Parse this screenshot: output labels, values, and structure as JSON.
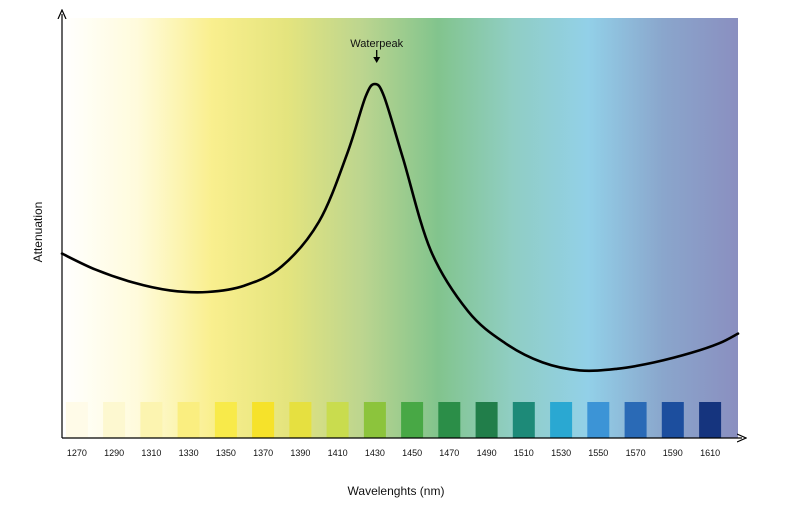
{
  "chart_data": {
    "type": "line",
    "title": "",
    "xlabel": "Wavelenghts (nm)",
    "ylabel": "Attenuation",
    "x_ticks": [
      "1270",
      "1290",
      "1310",
      "1330",
      "1350",
      "1370",
      "1390",
      "1410",
      "1430",
      "1450",
      "1470",
      "1490",
      "1510",
      "1530",
      "1550",
      "1570",
      "1590",
      "1610"
    ],
    "xlim": [
      1262,
      1625
    ],
    "ylim": [
      0,
      1
    ],
    "grid": false,
    "legend": "none",
    "annotation": {
      "text": "Waterpeak",
      "x": 1431
    },
    "series": [
      {
        "name": "",
        "color": "#000000",
        "x": [
          1262,
          1280,
          1300,
          1320,
          1340,
          1360,
          1380,
          1400,
          1415,
          1425,
          1430,
          1435,
          1445,
          1460,
          1480,
          1500,
          1520,
          1540,
          1560,
          1580,
          1600,
          1615,
          1625
        ],
        "y": [
          0.42,
          0.37,
          0.33,
          0.305,
          0.3,
          0.32,
          0.38,
          0.52,
          0.73,
          0.91,
          0.95,
          0.91,
          0.72,
          0.43,
          0.24,
          0.14,
          0.08,
          0.055,
          0.06,
          0.08,
          0.11,
          0.14,
          0.17
        ]
      }
    ],
    "swatch_colors": [
      "#fffbe8",
      "#fdf8d0",
      "#fcf4b0",
      "#faee80",
      "#f8ea4a",
      "#f6e22a",
      "#e6e040",
      "#c9dc4e",
      "#8cc43c",
      "#48a845",
      "#2b8e48",
      "#217e4a",
      "#1d8a78",
      "#2aa8d2",
      "#3c94d6",
      "#2a6ab6",
      "#1c4e9e",
      "#15347e"
    ],
    "background_gradient": [
      "#ffffff",
      "#fffbdc",
      "#f9ef8e",
      "#e4e47e",
      "#bcd58f",
      "#82c48d",
      "#90cec4",
      "#92d0e8",
      "#8aa6cc",
      "#8a8fc0"
    ]
  }
}
